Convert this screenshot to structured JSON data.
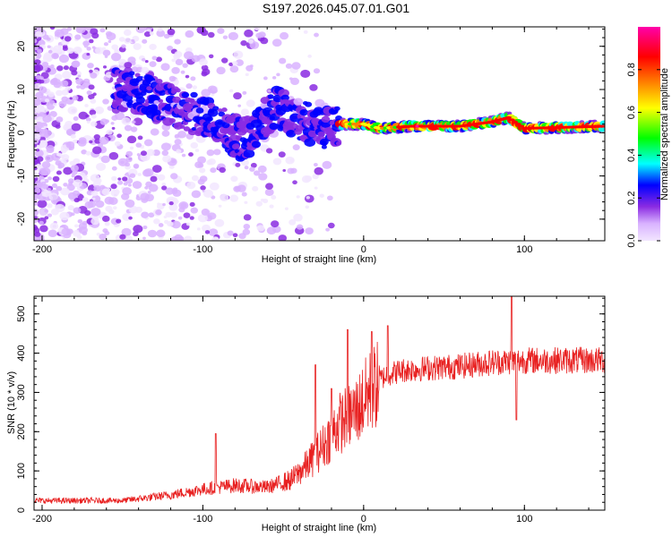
{
  "title": "S197.2026.045.07.01.G01",
  "chart_data": [
    {
      "type": "heatmap",
      "title": "S197.2026.045.07.01.G01",
      "xlabel": "Height of straight line (km)",
      "ylabel": "Frequency (Hz)",
      "xlim": [
        -205,
        150
      ],
      "ylim": [
        -25,
        24.5
      ],
      "xticks": [
        -200,
        -100,
        0,
        100
      ],
      "xtick_labels": [
        "-200",
        "-100",
        "0",
        "100"
      ],
      "yticks": [
        -20,
        -10,
        0,
        10,
        20
      ],
      "ytick_labels": [
        "-20",
        "-10",
        "0",
        "10",
        "20"
      ],
      "colorbar": {
        "label": "Normalized spectral amplitude",
        "range": [
          0,
          1
        ],
        "ticks": [
          0.0,
          0.2,
          0.4,
          0.6,
          0.8
        ],
        "tick_labels": [
          "0.0",
          "0.2",
          "0.4",
          "0.6",
          "0.8"
        ],
        "colors": [
          "#f2e6ff",
          "#d9b3ff",
          "#8a2be2",
          "#0000ff",
          "#00ffff",
          "#00ff00",
          "#ffff00",
          "#ff8000",
          "#ff0000",
          "#ff00aa"
        ]
      },
      "ridge": [
        {
          "x": -150,
          "f": 10
        },
        {
          "x": -130,
          "f": 8
        },
        {
          "x": -110,
          "f": 5
        },
        {
          "x": -90,
          "f": 2
        },
        {
          "x": -75,
          "f": -2
        },
        {
          "x": -55,
          "f": 6
        },
        {
          "x": -40,
          "f": 3
        },
        {
          "x": -25,
          "f": 1
        },
        {
          "x": -15,
          "f": 2
        },
        {
          "x": 0,
          "f": 2
        },
        {
          "x": 10,
          "f": 1
        },
        {
          "x": 30,
          "f": 1.5
        },
        {
          "x": 60,
          "f": 1.5
        },
        {
          "x": 80,
          "f": 2.5
        },
        {
          "x": 90,
          "f": 3.5
        },
        {
          "x": 100,
          "f": 1
        },
        {
          "x": 150,
          "f": 1.5
        }
      ]
    },
    {
      "type": "line",
      "xlabel": "Height of straight line (km)",
      "ylabel": "SNR (10 * v/v)",
      "xlim": [
        -205,
        150
      ],
      "ylim": [
        0,
        545
      ],
      "xticks": [
        -200,
        -100,
        0,
        100
      ],
      "xtick_labels": [
        "-200",
        "-100",
        "0",
        "100"
      ],
      "yticks": [
        0,
        100,
        200,
        300,
        400,
        500
      ],
      "ytick_labels": [
        "0",
        "100",
        "200",
        "300",
        "400",
        "500"
      ],
      "line_color": "#e82020",
      "envelope": [
        {
          "x": -205,
          "y": 25
        },
        {
          "x": -150,
          "y": 25
        },
        {
          "x": -120,
          "y": 40
        },
        {
          "x": -100,
          "y": 55
        },
        {
          "x": -80,
          "y": 65
        },
        {
          "x": -60,
          "y": 60
        },
        {
          "x": -45,
          "y": 80
        },
        {
          "x": -35,
          "y": 120
        },
        {
          "x": -25,
          "y": 170
        },
        {
          "x": -15,
          "y": 230
        },
        {
          "x": -5,
          "y": 260
        },
        {
          "x": 5,
          "y": 320
        },
        {
          "x": 15,
          "y": 350
        },
        {
          "x": 25,
          "y": 360
        },
        {
          "x": 40,
          "y": 365
        },
        {
          "x": 60,
          "y": 370
        },
        {
          "x": 80,
          "y": 380
        },
        {
          "x": 100,
          "y": 385
        },
        {
          "x": 120,
          "y": 385
        },
        {
          "x": 150,
          "y": 385
        }
      ],
      "spikes": [
        {
          "x": -92,
          "y": 195
        },
        {
          "x": -30,
          "y": 370
        },
        {
          "x": -20,
          "y": 310
        },
        {
          "x": -10,
          "y": 460
        },
        {
          "x": 5,
          "y": 455
        },
        {
          "x": 15,
          "y": 470
        },
        {
          "x": 92,
          "y": 545
        },
        {
          "x": 95,
          "y": 230
        }
      ]
    }
  ]
}
